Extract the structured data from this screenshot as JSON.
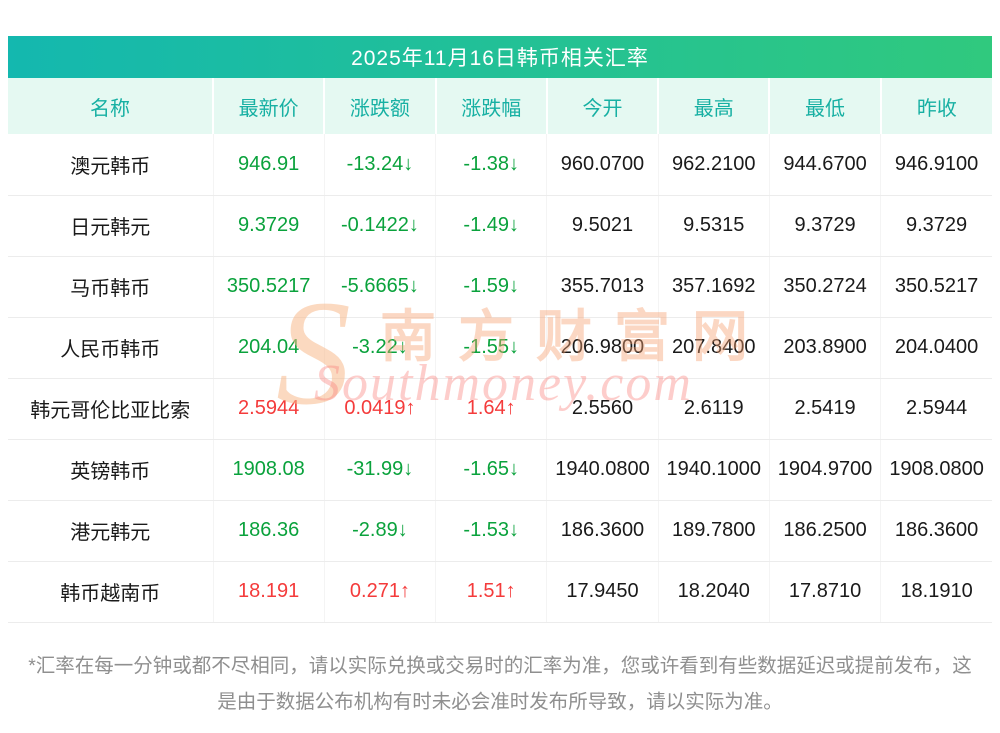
{
  "title": "2025年11月16日韩币相关汇率",
  "chart_data": {
    "type": "table",
    "title": "2025年11月16日韩币相关汇率",
    "columns": [
      "名称",
      "最新价",
      "涨跌额",
      "涨跌幅",
      "今开",
      "最高",
      "最低",
      "昨收"
    ],
    "rows": [
      [
        "澳元韩币",
        "946.91",
        "-13.24↓",
        "-1.38↓",
        "960.0700",
        "962.2100",
        "944.6700",
        "946.9100"
      ],
      [
        "日元韩元",
        "9.3729",
        "-0.1422↓",
        "-1.49↓",
        "9.5021",
        "9.5315",
        "9.3729",
        "9.3729"
      ],
      [
        "马币韩币",
        "350.5217",
        "-5.6665↓",
        "-1.59↓",
        "355.7013",
        "357.1692",
        "350.2724",
        "350.5217"
      ],
      [
        "人民币韩币",
        "204.04",
        "-3.22↓",
        "-1.55↓",
        "206.9800",
        "207.8400",
        "203.8900",
        "204.0400"
      ],
      [
        "韩元哥伦比亚比索",
        "2.5944",
        "0.0419↑",
        "1.64↑",
        "2.5560",
        "2.6119",
        "2.5419",
        "2.5944"
      ],
      [
        "英镑韩币",
        "1908.08",
        "-31.99↓",
        "-1.65↓",
        "1940.0800",
        "1940.1000",
        "1904.9700",
        "1908.0800"
      ],
      [
        "港元韩元",
        "186.36",
        "-2.89↓",
        "-1.53↓",
        "186.3600",
        "189.7800",
        "186.2500",
        "186.3600"
      ],
      [
        "韩币越南币",
        "18.191",
        "0.271↑",
        "1.51↑",
        "17.9450",
        "18.2040",
        "17.8710",
        "18.1910"
      ]
    ],
    "row_trends": [
      "down",
      "down",
      "down",
      "down",
      "up",
      "down",
      "down",
      "up"
    ]
  },
  "watermark": {
    "logo_letter": "S",
    "cn": "南方财富网",
    "en": "Southmoney.com"
  },
  "footnote": "*汇率在每一分钟或都不尽相同，请以实际兑换或交易时的汇率为准，您或许看到有些数据延迟或提前发布，这是由于数据公布机构有时未必会准时发布所导致，请以实际为准。",
  "colors": {
    "title_gradient_start": "#14b8af",
    "title_gradient_end": "#30c97e",
    "header_background": "#e5f9f2",
    "header_text": "#17b0a3",
    "up": "#f43b3b",
    "down": "#0aa23c"
  }
}
